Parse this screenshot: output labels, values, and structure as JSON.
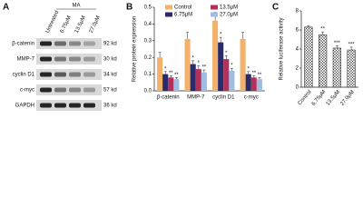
{
  "panel_a": {
    "label": "A",
    "treatment": "MA",
    "lanes": [
      "Untreated",
      "6.75μM",
      "13.5μM",
      "27.0μM"
    ],
    "rows": [
      {
        "name": "β-catenin",
        "size": "92 kd"
      },
      {
        "name": "MMP-7",
        "size": "30 kd"
      },
      {
        "name": "cyclin D1",
        "size": "34 kd"
      },
      {
        "name": "c-myc",
        "size": "57 kd"
      },
      {
        "name": "GAPDH",
        "size": "36 kd"
      }
    ]
  },
  "chart_data": [
    {
      "type": "bar",
      "panel_label": "B",
      "y_label": "Relative protein expression",
      "categories": [
        "β-catenin",
        "MMP-7",
        "cyclin D1",
        "c-myc"
      ],
      "series": [
        {
          "name": "Control",
          "color": "#f2b26b",
          "values": [
            0.2,
            0.31,
            0.42,
            0.31
          ],
          "errors": [
            0.03,
            0.04,
            0.05,
            0.04
          ]
        },
        {
          "name": "6.75μM",
          "color": "#2b2a6b",
          "values": [
            0.1,
            0.16,
            0.29,
            0.1
          ],
          "errors": [
            0.015,
            0.02,
            0.03,
            0.015
          ],
          "stars": [
            "*",
            "*",
            "*",
            "*"
          ]
        },
        {
          "name": "13.5μM",
          "color": "#b3305b",
          "values": [
            0.08,
            0.13,
            0.19,
            0.08
          ],
          "errors": [
            0.01,
            0.02,
            0.02,
            0.01
          ],
          "stars": [
            "**",
            "*",
            "*",
            "**"
          ]
        },
        {
          "name": "27.0μM",
          "color": "#9fbde3",
          "values": [
            0.07,
            0.11,
            0.12,
            0.07
          ],
          "errors": [
            0.01,
            0.015,
            0.015,
            0.01
          ],
          "stars": [
            "**",
            "**",
            "*",
            "**"
          ]
        }
      ],
      "ylim": [
        0,
        0.5
      ],
      "yticks": [
        {
          "value": 0,
          "label": "0.0"
        },
        0.1,
        0.2,
        0.3,
        0.4,
        0.5
      ]
    },
    {
      "type": "bar",
      "panel_label": "C",
      "y_label": "Relative luciferase activity",
      "categories": [
        "Control",
        "6.75μM",
        "13.5μM",
        "27.0μM"
      ],
      "values": [
        6.3,
        5.5,
        4.1,
        3.9
      ],
      "errors": [
        0.15,
        0.3,
        0.25,
        0.3
      ],
      "stars": [
        null,
        "**",
        "***",
        "***"
      ],
      "color": "#333333",
      "ylim": [
        0,
        8
      ],
      "yticks": [
        0,
        2,
        4,
        6,
        8
      ]
    }
  ]
}
